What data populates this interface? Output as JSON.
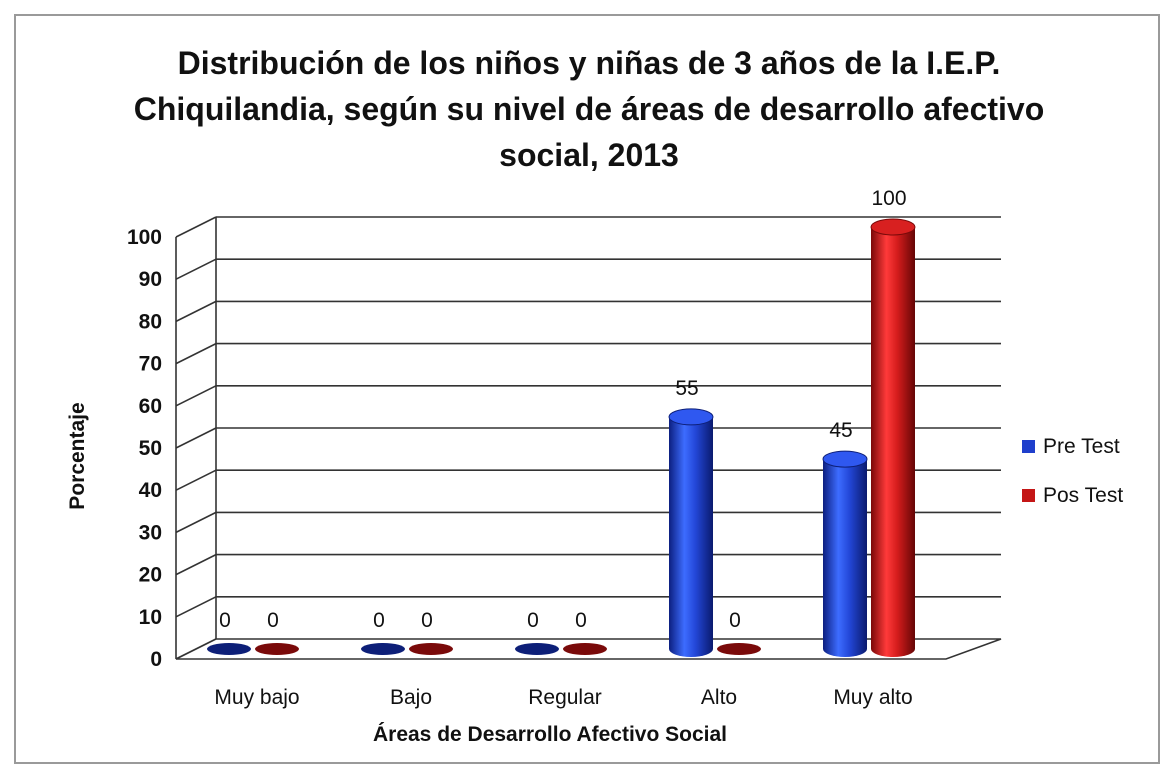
{
  "chart_data": {
    "type": "bar",
    "title": "Distribución de los niños y niñas de 3 años de la I.E.P. Chiquilandia, según su nivel de áreas de desarrollo afectivo social, 2013",
    "title_lines": [
      "Distribución de los niños y niñas de 3 años de la I.E.P.",
      "Chiquilandia, según su nivel de áreas de desarrollo afectivo",
      "social, 2013"
    ],
    "xlabel": "Áreas de Desarrollo Afectivo Social",
    "ylabel": "Porcentaje",
    "categories": [
      "Muy bajo",
      "Bajo",
      "Regular",
      "Alto",
      "Muy alto"
    ],
    "series": [
      {
        "name": "Pre Test",
        "color": "#1f3fcc",
        "values": [
          0,
          0,
          0,
          55,
          45
        ]
      },
      {
        "name": "Pos Test",
        "color": "#c41616",
        "values": [
          0,
          0,
          0,
          0,
          100
        ]
      }
    ],
    "ylim": [
      0,
      100
    ],
    "yticks": [
      0,
      10,
      20,
      30,
      40,
      50,
      60,
      70,
      80,
      90,
      100
    ],
    "grid": true,
    "legend": "right",
    "style": "3d-cylinder"
  }
}
